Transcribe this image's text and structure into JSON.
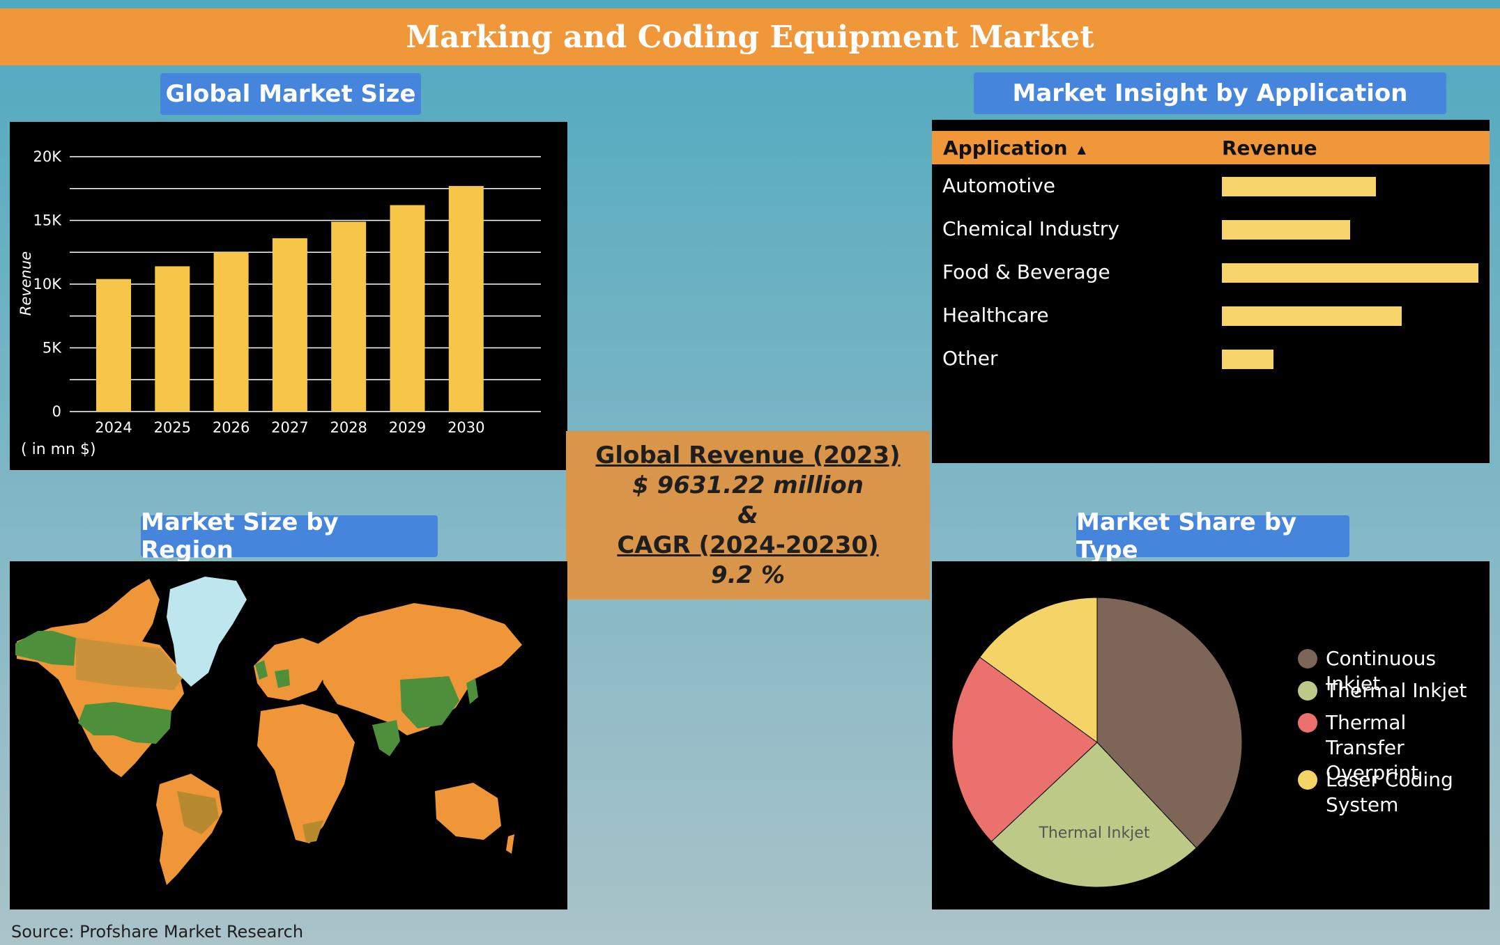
{
  "title": "Marking and Coding Equipment Market",
  "panels": {
    "market_size": "Global Market Size",
    "application": "Market Insight by Application",
    "region": "Market Size by Region",
    "type": "Market Share by Type"
  },
  "center": {
    "line1": "Global Revenue (2023)",
    "line2": "$ 9631.22 million",
    "line3": "&",
    "line4": "CAGR (2024-20230)",
    "line5": "9.2 %"
  },
  "source": "Source: Profshare Market Research",
  "chart_data": [
    {
      "type": "bar",
      "categories": [
        "2024",
        "2025",
        "2026",
        "2027",
        "2028",
        "2029",
        "2030"
      ],
      "values": [
        10400,
        11400,
        12500,
        13600,
        14900,
        16200,
        17700
      ],
      "ylabel": "Revenue",
      "units_note": "( in mn $)",
      "ylim": [
        0,
        20000
      ],
      "yticks": [
        0,
        5000,
        10000,
        15000,
        20000
      ],
      "ytick_labels": [
        "0",
        "5K",
        "10K",
        "15K",
        "20K"
      ],
      "color": "#f7c548",
      "grid": true
    },
    {
      "type": "table",
      "columns": [
        "Application",
        "Revenue"
      ],
      "rows": [
        {
          "label": "Automotive",
          "value": 0.6
        },
        {
          "label": "Chemical Industry",
          "value": 0.5
        },
        {
          "label": "Food & Beverage",
          "value": 1.0
        },
        {
          "label": "Healthcare",
          "value": 0.7
        },
        {
          "label": "Other",
          "value": 0.2
        }
      ],
      "bar_color": "#f7d46a",
      "header_color": "#f0973a"
    },
    {
      "type": "pie",
      "labels": [
        "Continuous Inkjet",
        "Thermal Inkjet",
        "Thermal Transfer Overprint",
        "Laser Coding System"
      ],
      "values": [
        38,
        25,
        22,
        15
      ],
      "colors": [
        "#7d6658",
        "#bdc986",
        "#eb716d",
        "#f5d467"
      ],
      "slice_labels": [
        "",
        "Thermal Inkjet",
        "",
        ""
      ],
      "legend_position": "right"
    }
  ],
  "map": {
    "highlight_color": "#4e8f3c",
    "base_color": "#ef9638",
    "ice_color": "#bde6ee"
  }
}
